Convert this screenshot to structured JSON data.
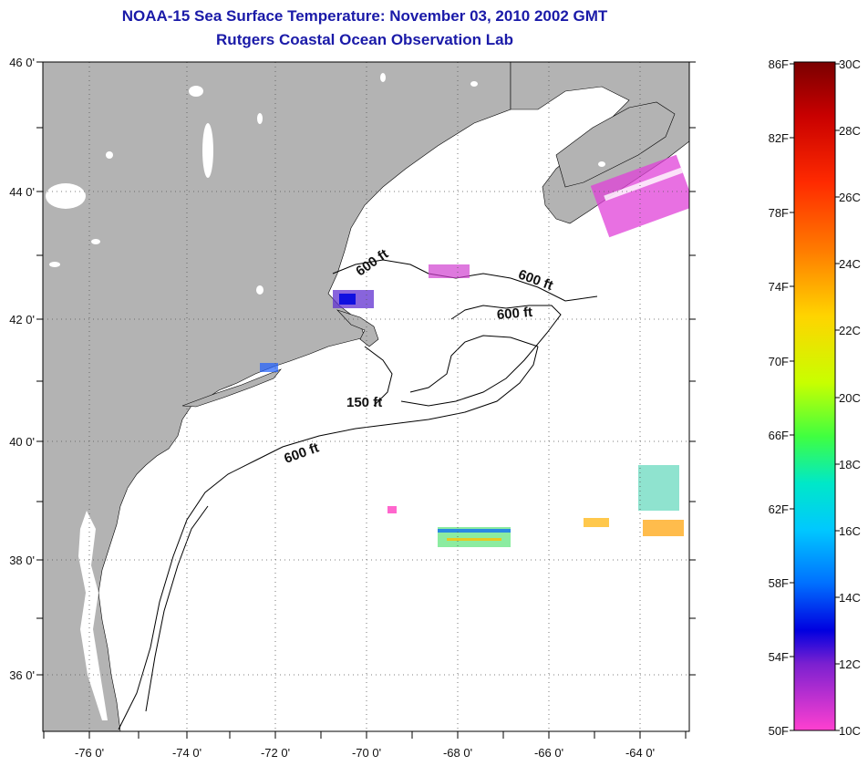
{
  "title": {
    "line1": "NOAA-15 Sea Surface Temperature:  November 03, 2010 2002 GMT",
    "line2": "Rutgers Coastal Ocean Observation Lab"
  },
  "map": {
    "lat_ticks": [
      "46 0'",
      "44 0'",
      "42 0'",
      "40 0'",
      "38 0'",
      "36 0'"
    ],
    "lon_ticks": [
      "-76 0'",
      "-74 0'",
      "-72 0'",
      "-70 0'",
      "-68 0'",
      "-66 0'",
      "-64 0'"
    ],
    "contour_labels": [
      "600 ft",
      "600 ft",
      "600 ft",
      "150 ft",
      "600 ft"
    ],
    "colors": {
      "land": "#b3b3b3",
      "water": "#ffffff",
      "contour": "#000000"
    }
  },
  "colorbar": {
    "fahrenheit": [
      "86F",
      "82F",
      "78F",
      "74F",
      "70F",
      "66F",
      "62F",
      "58F",
      "54F",
      "50F"
    ],
    "celsius": [
      "30C",
      "28C",
      "26C",
      "24C",
      "22C",
      "20C",
      "18C",
      "16C",
      "14C",
      "12C",
      "10C"
    ],
    "gradient": [
      "#7a0000",
      "#c80000",
      "#ff2a00",
      "#ff7a00",
      "#ffd400",
      "#c8ff00",
      "#40ff40",
      "#00e8c8",
      "#00c8ff",
      "#0070ff",
      "#0000e0",
      "#7a20d0",
      "#ff40d0"
    ]
  }
}
